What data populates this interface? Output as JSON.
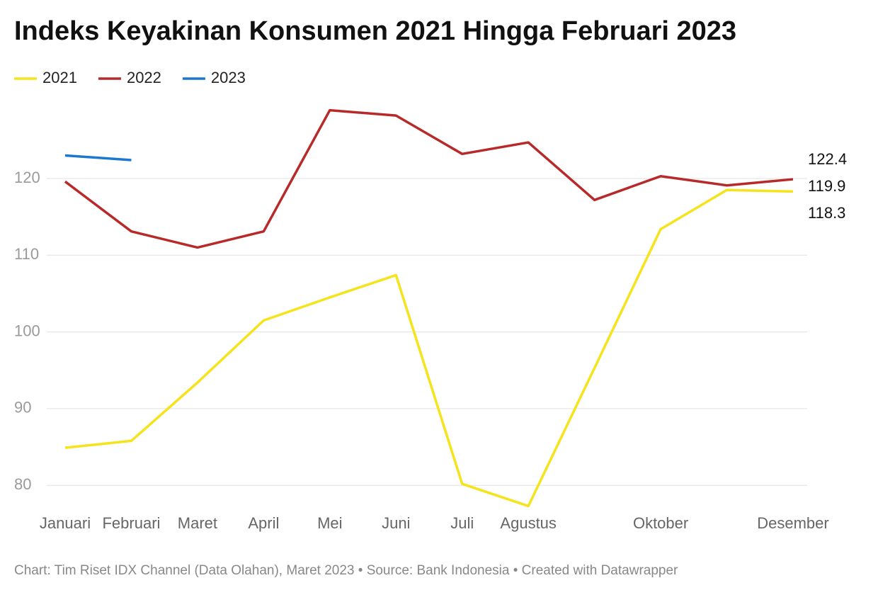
{
  "chart_data": {
    "type": "line",
    "title": "Indeks Keyakinan Konsumen 2021 Hingga Februari 2023",
    "source": "Chart: Tim Riset IDX Channel (Data Olahan), Maret 2023 • Source: Bank Indonesia • Created with Datawrapper",
    "categories": [
      "Januari",
      "Februari",
      "Maret",
      "April",
      "Mei",
      "Juni",
      "Juli",
      "Agustus",
      null,
      "Oktober",
      null,
      "Desember"
    ],
    "series": [
      {
        "name": "2021",
        "color": "#f5e31b",
        "values": [
          84.9,
          85.8,
          93.4,
          101.5,
          104.5,
          107.4,
          80.2,
          77.3,
          95.3,
          113.4,
          118.5,
          118.3
        ]
      },
      {
        "name": "2022",
        "color": "#b82a2a",
        "values": [
          119.6,
          113.1,
          111.0,
          113.1,
          128.9,
          128.2,
          123.2,
          124.7,
          117.2,
          120.3,
          119.1,
          119.9
        ]
      },
      {
        "name": "2023",
        "color": "#1a78cf",
        "values": [
          123.0,
          122.4,
          null,
          null,
          null,
          null,
          null,
          null,
          null,
          null,
          null,
          null
        ]
      }
    ],
    "ylim": [
      77,
      129
    ],
    "yticks": [
      80,
      90,
      100,
      110,
      120
    ],
    "grid": true,
    "legend": "top-left"
  }
}
